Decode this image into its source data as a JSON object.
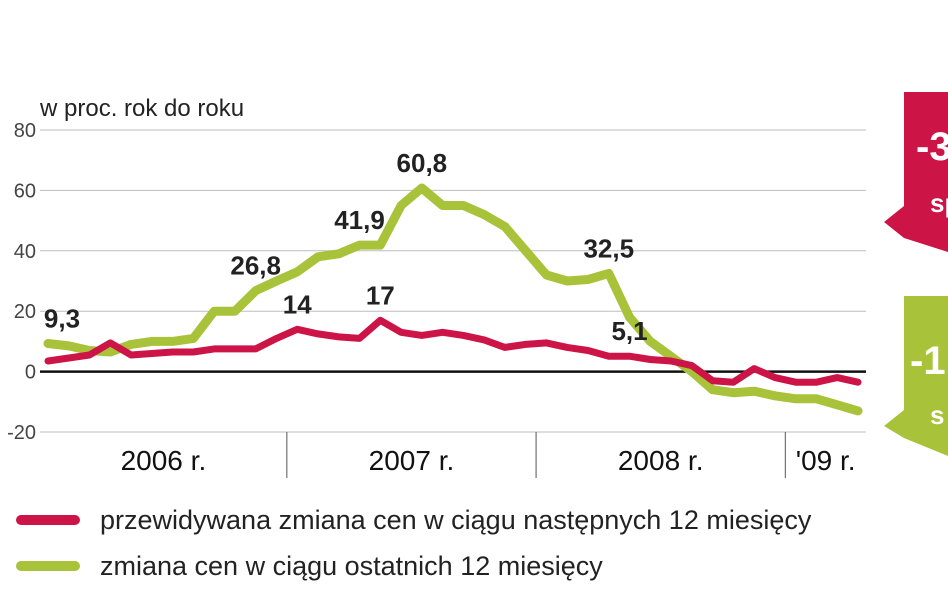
{
  "chart_data": {
    "type": "line",
    "ylabel": "w proc. rok do roku",
    "ylim": [
      -20,
      80
    ],
    "yticks": [
      80,
      60,
      40,
      20,
      0,
      -20
    ],
    "grid": true,
    "legend_position": "bottom",
    "period_labels": [
      "2006 r.",
      "2007 r.",
      "2008 r.",
      "'09 r."
    ],
    "x": [
      "2006-01",
      "2006-02",
      "2006-03",
      "2006-04",
      "2006-05",
      "2006-06",
      "2006-07",
      "2006-08",
      "2006-09",
      "2006-10",
      "2006-11",
      "2006-12",
      "2007-01",
      "2007-02",
      "2007-03",
      "2007-04",
      "2007-05",
      "2007-06",
      "2007-07",
      "2007-08",
      "2007-09",
      "2007-10",
      "2007-11",
      "2007-12",
      "2008-01",
      "2008-02",
      "2008-03",
      "2008-04",
      "2008-05",
      "2008-06",
      "2008-07",
      "2008-08",
      "2008-09",
      "2008-10",
      "2008-11",
      "2008-12",
      "2009-01",
      "2009-02",
      "2009-03",
      "2009-04"
    ],
    "series": [
      {
        "name": "przewidywana zmiana cen w ciągu następnych 12 miesięcy",
        "color": "#cc1446",
        "values": [
          3.5,
          4.5,
          5.5,
          9.5,
          5.5,
          6,
          6.5,
          6.5,
          7.5,
          7.5,
          7.5,
          11,
          14,
          12.5,
          11.5,
          11,
          17,
          13,
          12,
          13,
          12,
          10.5,
          8,
          9,
          9.5,
          8,
          7,
          5.1,
          5.1,
          4,
          3.5,
          2,
          -3,
          -3.5,
          1,
          -2,
          -3.5,
          -3.5,
          -2,
          -3.5
        ]
      },
      {
        "name": "zmiana cen w ciągu ostatnich 12 miesięcy",
        "color": "#a8c23a",
        "values": [
          9.3,
          8.5,
          7,
          6.5,
          9,
          10,
          10,
          11,
          20,
          20,
          26.8,
          30,
          33,
          38,
          39,
          41.9,
          41.9,
          55,
          60.8,
          55,
          55,
          52,
          48,
          40,
          32,
          30,
          30.5,
          32.5,
          18,
          10,
          5,
          0,
          -6,
          -7,
          -6.5,
          -8,
          -9,
          -9,
          -11,
          -13
        ]
      }
    ],
    "annotations": [
      {
        "text": "9,3",
        "series": 1,
        "x": "2006-01"
      },
      {
        "text": "26,8",
        "series": 1,
        "x": "2006-11"
      },
      {
        "text": "41,9",
        "series": 1,
        "x": "2007-04"
      },
      {
        "text": "60,8",
        "series": 1,
        "x": "2007-07"
      },
      {
        "text": "32,5",
        "series": 1,
        "x": "2008-04"
      },
      {
        "text": "14",
        "series": 0,
        "x": "2007-01"
      },
      {
        "text": "17",
        "series": 0,
        "x": "2007-05"
      },
      {
        "text": "5,1",
        "series": 0,
        "x": "2008-05"
      }
    ]
  },
  "badges": [
    {
      "main": "-3",
      "sub": "sp",
      "color": "#cc1446"
    },
    {
      "main": "-1",
      "sub": "s",
      "color": "#a8c23a"
    }
  ]
}
